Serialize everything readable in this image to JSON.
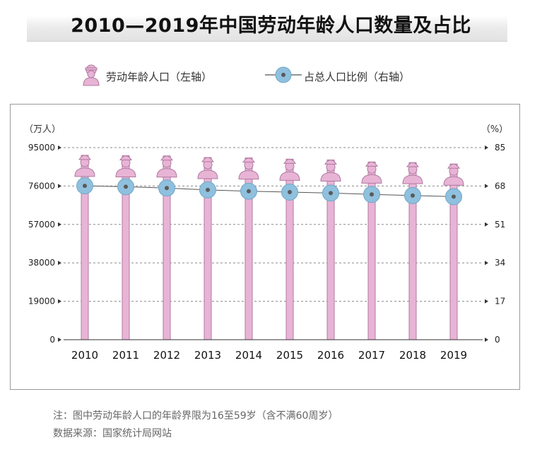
{
  "title": "2010—2019年中国劳动年龄人口数量及占比",
  "legend": {
    "left_series": "劳动年龄人口（左轴）",
    "right_series": "占总人口比例（右轴）"
  },
  "chart_data": {
    "type": "bar",
    "categories": [
      "2010",
      "2011",
      "2012",
      "2013",
      "2014",
      "2015",
      "2016",
      "2017",
      "2018",
      "2019"
    ],
    "series": [
      {
        "name": "劳动年龄人口（左轴）",
        "axis": "left",
        "type": "bar",
        "values": [
          91200,
          91000,
          90900,
          90100,
          89900,
          89300,
          88900,
          87900,
          87600,
          86900
        ]
      },
      {
        "name": "占总人口比例（右轴）",
        "axis": "right",
        "type": "line",
        "values": [
          68.1,
          67.7,
          67.1,
          66.3,
          65.7,
          65.3,
          64.9,
          64.3,
          63.8,
          63.3
        ]
      }
    ],
    "left_axis": {
      "unit": "（万人）",
      "ticks": [
        0,
        19000,
        38000,
        57000,
        76000,
        95000
      ],
      "range": [
        0,
        95000
      ]
    },
    "right_axis": {
      "unit": "（%）",
      "ticks": [
        0,
        17,
        34,
        51,
        68,
        85
      ],
      "range": [
        0,
        85
      ]
    },
    "grid": "dashed horizontal",
    "colors": {
      "bar": "#e8b4d6",
      "bar_outline": "#b07aa0",
      "marker": "#8fc0dd",
      "marker_dot": "#5a5a5a",
      "line": "#555555"
    }
  },
  "note": "注：图中劳动年龄人口的年龄界限为16至59岁（含不满60周岁）",
  "source": "数据来源：国家统计局网站"
}
